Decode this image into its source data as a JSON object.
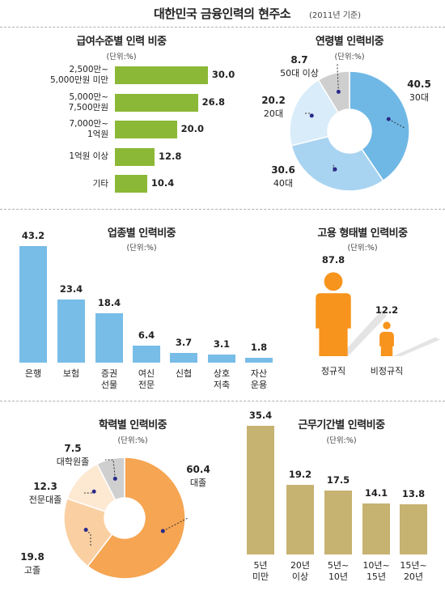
{
  "header": {
    "title": "대한민국 금융인력의 현주소",
    "subtitle": "(2011년 기준)"
  },
  "colors": {
    "green": "#8cb837",
    "blue": "#77bde8",
    "orange": "#f7941d",
    "gold": "#c6b271",
    "gray": "#cfcfcf"
  },
  "chart_data": [
    {
      "type": "bar",
      "orientation": "horizontal",
      "title": "급여수준별 인력 비중",
      "unit": "(단위:%)",
      "categories": [
        [
          "2,500만~",
          "5,000만원 미만"
        ],
        [
          "5,000만~",
          "7,500만원"
        ],
        [
          "7,000만~",
          "1억원"
        ],
        [
          "1억원 이상"
        ],
        [
          "기타"
        ]
      ],
      "values": [
        30.0,
        26.8,
        20.0,
        12.8,
        10.4
      ],
      "value_labels": [
        "30.0",
        "26.8",
        "20.0",
        "12.8",
        "10.4"
      ]
    },
    {
      "type": "pie",
      "variant": "donut",
      "title": "연령별 인력비중",
      "unit": "(단위:%)",
      "slices": [
        {
          "label": "30대",
          "value": 40.5,
          "value_label": "40.5",
          "color": "#6fb8e6"
        },
        {
          "label": "40대",
          "value": 30.6,
          "value_label": "30.6",
          "color": "#a9d4f1"
        },
        {
          "label": "20대",
          "value": 20.2,
          "value_label": "20.2",
          "color": "#d9ecf9"
        },
        {
          "label": "50대 이상",
          "value": 8.7,
          "value_label": "8.7",
          "color": "#cfcfcf"
        }
      ]
    },
    {
      "type": "bar",
      "orientation": "vertical",
      "title": "업종별 인력비중",
      "unit": "(단위:%)",
      "categories": [
        [
          "은행"
        ],
        [
          "보험"
        ],
        [
          "증권",
          "선물"
        ],
        [
          "여신",
          "전문"
        ],
        [
          "신협"
        ],
        [
          "상호",
          "저축"
        ],
        [
          "자산",
          "운용"
        ]
      ],
      "values": [
        43.2,
        23.4,
        18.4,
        6.4,
        3.7,
        3.1,
        1.8
      ],
      "value_labels": [
        "43.2",
        "23.4",
        "18.4",
        "6.4",
        "3.7",
        "3.1",
        "1.8"
      ]
    },
    {
      "type": "bar",
      "variant": "pictogram",
      "title": "고용 형태별 인력비중",
      "unit": "(단위:%)",
      "categories": [
        "정규직",
        "비정규직"
      ],
      "values": [
        87.8,
        12.2
      ],
      "value_labels": [
        "87.8",
        "12.2"
      ]
    },
    {
      "type": "pie",
      "variant": "donut",
      "title": "학력별 인력비중",
      "unit": "(단위:%)",
      "slices": [
        {
          "label": "대졸",
          "value": 60.4,
          "value_label": "60.4",
          "color": "#f6a552"
        },
        {
          "label": "고졸",
          "value": 19.8,
          "value_label": "19.8",
          "color": "#fad0a3"
        },
        {
          "label": "전문대졸",
          "value": 12.3,
          "value_label": "12.3",
          "color": "#fde8d2"
        },
        {
          "label": "대학원졸",
          "value": 7.5,
          "value_label": "7.5",
          "color": "#cfcfcf"
        }
      ]
    },
    {
      "type": "bar",
      "orientation": "vertical",
      "title": "근무기간별 인력비중",
      "unit": "(단위:%)",
      "categories": [
        [
          "5년",
          "미만"
        ],
        [
          "20년",
          "이상"
        ],
        [
          "5년~",
          "10년"
        ],
        [
          "10년~",
          "15년"
        ],
        [
          "15년~",
          "20년"
        ]
      ],
      "values": [
        35.4,
        19.2,
        17.5,
        14.1,
        13.8
      ],
      "value_labels": [
        "35.4",
        "19.2",
        "17.5",
        "14.1",
        "13.8"
      ]
    }
  ]
}
